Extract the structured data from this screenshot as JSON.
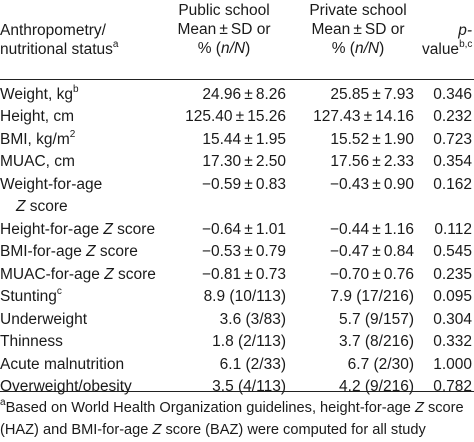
{
  "header": {
    "col1_line1": "Anthropometry/",
    "col1_line2": "nutritional status",
    "col1_sup": "a",
    "col2_line1": "Public school",
    "col2_line2": "Mean ± SD or",
    "col2_line3_pre": "% (",
    "col2_line3_em": "n/N",
    "col2_line3_post": ")",
    "col3_line1": "Private school",
    "col3_line2": "Mean ± SD or",
    "col3_line3_pre": "% (",
    "col3_line3_em": "n/N",
    "col3_line3_post": ")",
    "col4_line1": "p-",
    "col4_line2": "value",
    "col4_sup": "b,c"
  },
  "rows": [
    {
      "label": "Weight, kg",
      "sup": "b",
      "public": "24.96 ± 8.26",
      "private": "25.85 ± 7.93",
      "p": "0.346"
    },
    {
      "label": "Height, cm",
      "public": "125.40 ± 15.26",
      "private": "127.43 ± 14.16",
      "p": "0.232"
    },
    {
      "label": "BMI, kg/m",
      "sup": "2",
      "public": "15.44 ± 1.95",
      "private": "15.52 ± 1.90",
      "p": "0.723"
    },
    {
      "label": "MUAC, cm",
      "public": "17.30 ± 2.50",
      "private": "17.56 ± 2.33",
      "p": "0.354"
    },
    {
      "label": "Weight-for-age",
      "label2_em": "Z",
      "label2_post": " score",
      "public": "−0.59 ± 0.83",
      "private": "−0.43 ± 0.90",
      "p": "0.162"
    },
    {
      "label_pre": "Height-for-age ",
      "label_em": "Z",
      "label_post": " score",
      "public": "−0.64 ± 1.01",
      "private": "−0.44 ± 1.16",
      "p": "0.112"
    },
    {
      "label_pre": "BMI-for-age ",
      "label_em": "Z",
      "label_post": " score",
      "public": "−0.53 ± 0.79",
      "private": "−0.47 ± 0.84",
      "p": "0.545"
    },
    {
      "label_pre": "MUAC-for-age ",
      "label_em": "Z",
      "label_post": " score",
      "public": "−0.81 ± 0.73",
      "private": "−0.70 ± 0.76",
      "p": "0.235"
    },
    {
      "label": "Stunting",
      "sup": "c",
      "public": "8.9 (10/113)",
      "private": "7.9 (17/216)",
      "p": "0.095"
    },
    {
      "label": "Underweight",
      "public": "3.6 (3/83)",
      "private": "5.7 (9/157)",
      "p": "0.304"
    },
    {
      "label": "Thinness",
      "public": "1.8 (2/113)",
      "private": "3.7 (8/216)",
      "p": "0.332"
    },
    {
      "label": "Acute malnutrition",
      "public": "6.1 (2/33)",
      "private": "6.7 (2/30)",
      "p": "1.000"
    },
    {
      "label": "Overweight/obesity",
      "public": "3.5 (4/113)",
      "private": "4.2 (9/216)",
      "p": "0.782"
    }
  ],
  "footnote": {
    "marker": "a",
    "line1_pre": "Based on World Health Organization guidelines, height-for-age ",
    "line1_em": "Z",
    "line1_post": " score",
    "line2_pre": "(HAZ) and BMI-for-age ",
    "line2_em": "Z",
    "line2_post": " score (BAZ) were computed for all study"
  }
}
